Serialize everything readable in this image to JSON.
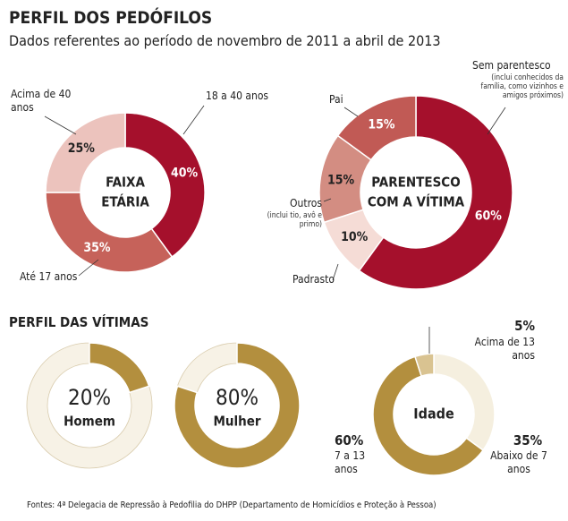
{
  "header": {
    "title": "PERFIL DOS PEDÓFILOS",
    "subtitle": "Dados referentes ao período de novembro de 2011 a abril de 2013"
  },
  "section_title": "PERFIL DAS VÍTIMAS",
  "source": "Fontes: 4ª Delegacia de Repressão à Pedofilia do DHPP (Departamento de Homicídios e Proteção à Pessoa)",
  "chart_data": [
    {
      "type": "donut",
      "center_label": [
        "FAIXA",
        "ETÁRIA"
      ],
      "categories": [
        "18 a 40 anos",
        "Até 17 anos",
        "Acima de 40 anos"
      ],
      "values": [
        40,
        35,
        25
      ],
      "value_labels": [
        "40%",
        "35%",
        "25%"
      ],
      "colors": [
        "#a5102c",
        "#c6625a",
        "#ecc3bd"
      ]
    },
    {
      "type": "donut",
      "center_label": [
        "PARENTESCO",
        "COM A VÍTIMA"
      ],
      "categories": [
        "Sem parentesco",
        "Padrasto",
        "Outros",
        "Pai"
      ],
      "category_notes": [
        "(inclui conhecidos da família, como vizinhos e amigos próximos)",
        null,
        "(inclui tio, avô e primo)",
        null
      ],
      "values": [
        60,
        10,
        15,
        15
      ],
      "value_labels": [
        "60%",
        "10%",
        "15%",
        "15%"
      ],
      "colors": [
        "#a5102c",
        "#f5dcd6",
        "#d38d82",
        "#c15a55"
      ]
    },
    {
      "type": "donut",
      "categories": [
        "Homem"
      ],
      "values": [
        20
      ],
      "value_labels": [
        "20%"
      ],
      "colors": [
        "#b38f3e"
      ]
    },
    {
      "type": "donut",
      "categories": [
        "Mulher"
      ],
      "values": [
        80
      ],
      "value_labels": [
        "80%"
      ],
      "colors": [
        "#b38f3e"
      ]
    },
    {
      "type": "donut",
      "center_label": [
        "Idade"
      ],
      "categories": [
        "Abaixo de 7 anos",
        "7 a 13 anos",
        "Acima de 13 anos"
      ],
      "values": [
        35,
        60,
        5
      ],
      "value_labels": [
        "35%",
        "60%",
        "5%"
      ],
      "colors": [
        "#f5efdf",
        "#b38f3e",
        "#d9c391"
      ]
    }
  ]
}
